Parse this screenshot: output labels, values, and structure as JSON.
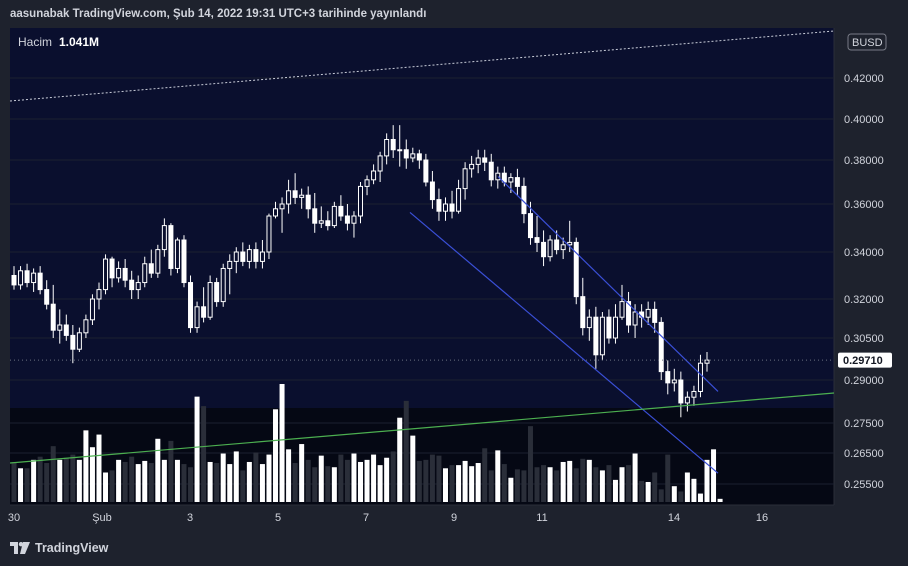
{
  "header": {
    "published_text": "aasunabak TradingView.com, Şub 14, 2022 19:31 UTC+3 tarihinde yayınlandı"
  },
  "footer": {
    "brand": "TradingView"
  },
  "chart_data": {
    "type": "candlestick",
    "currency_badge": "BUSD",
    "volume_label": "Hacim",
    "volume_value": "1.041M",
    "y_tick_labels": [
      "0.42000",
      "0.40000",
      "0.38000",
      "0.36000",
      "0.34000",
      "0.32000",
      "0.30500",
      "0.29000",
      "0.27500",
      "0.26500",
      "0.25500"
    ],
    "y_tick_values": [
      0.42,
      0.4,
      0.38,
      0.36,
      0.34,
      0.32,
      0.305,
      0.29,
      0.275,
      0.265,
      0.255
    ],
    "x_tick_labels": [
      "30",
      "Şub",
      "3",
      "5",
      "7",
      "9",
      "11",
      "14",
      "16"
    ],
    "x_tick_dates": [
      "2022-01-30",
      "2022-02-01",
      "2022-02-03",
      "2022-02-05",
      "2022-02-07",
      "2022-02-09",
      "2022-02-11",
      "2022-02-14",
      "2022-02-16"
    ],
    "last_price_label": "0.29710",
    "last_price": 0.2971,
    "candles": [
      {
        "o": 0.33,
        "h": 0.334,
        "l": 0.324,
        "c": 0.326
      },
      {
        "o": 0.326,
        "h": 0.334,
        "l": 0.324,
        "c": 0.332
      },
      {
        "o": 0.332,
        "h": 0.335,
        "l": 0.325,
        "c": 0.327
      },
      {
        "o": 0.327,
        "h": 0.333,
        "l": 0.323,
        "c": 0.331
      },
      {
        "o": 0.331,
        "h": 0.334,
        "l": 0.322,
        "c": 0.324
      },
      {
        "o": 0.324,
        "h": 0.328,
        "l": 0.316,
        "c": 0.318
      },
      {
        "o": 0.318,
        "h": 0.326,
        "l": 0.305,
        "c": 0.308
      },
      {
        "o": 0.308,
        "h": 0.316,
        "l": 0.303,
        "c": 0.31
      },
      {
        "o": 0.31,
        "h": 0.314,
        "l": 0.304,
        "c": 0.306
      },
      {
        "o": 0.306,
        "h": 0.31,
        "l": 0.296,
        "c": 0.301
      },
      {
        "o": 0.301,
        "h": 0.309,
        "l": 0.3,
        "c": 0.307
      },
      {
        "o": 0.307,
        "h": 0.314,
        "l": 0.305,
        "c": 0.312
      },
      {
        "o": 0.312,
        "h": 0.322,
        "l": 0.31,
        "c": 0.32
      },
      {
        "o": 0.32,
        "h": 0.327,
        "l": 0.316,
        "c": 0.324
      },
      {
        "o": 0.324,
        "h": 0.339,
        "l": 0.322,
        "c": 0.337
      },
      {
        "o": 0.337,
        "h": 0.338,
        "l": 0.325,
        "c": 0.329
      },
      {
        "o": 0.329,
        "h": 0.336,
        "l": 0.327,
        "c": 0.333
      },
      {
        "o": 0.333,
        "h": 0.337,
        "l": 0.325,
        "c": 0.328
      },
      {
        "o": 0.328,
        "h": 0.332,
        "l": 0.32,
        "c": 0.324
      },
      {
        "o": 0.324,
        "h": 0.33,
        "l": 0.32,
        "c": 0.327
      },
      {
        "o": 0.327,
        "h": 0.338,
        "l": 0.325,
        "c": 0.335
      },
      {
        "o": 0.335,
        "h": 0.341,
        "l": 0.329,
        "c": 0.331
      },
      {
        "o": 0.331,
        "h": 0.343,
        "l": 0.329,
        "c": 0.341
      },
      {
        "o": 0.341,
        "h": 0.354,
        "l": 0.338,
        "c": 0.351
      },
      {
        "o": 0.351,
        "h": 0.352,
        "l": 0.33,
        "c": 0.333
      },
      {
        "o": 0.333,
        "h": 0.346,
        "l": 0.331,
        "c": 0.345
      },
      {
        "o": 0.345,
        "h": 0.347,
        "l": 0.325,
        "c": 0.327
      },
      {
        "o": 0.327,
        "h": 0.33,
        "l": 0.307,
        "c": 0.309
      },
      {
        "o": 0.309,
        "h": 0.319,
        "l": 0.307,
        "c": 0.317
      },
      {
        "o": 0.317,
        "h": 0.325,
        "l": 0.311,
        "c": 0.313
      },
      {
        "o": 0.313,
        "h": 0.33,
        "l": 0.312,
        "c": 0.327
      },
      {
        "o": 0.327,
        "h": 0.329,
        "l": 0.317,
        "c": 0.319
      },
      {
        "o": 0.319,
        "h": 0.335,
        "l": 0.317,
        "c": 0.333
      },
      {
        "o": 0.333,
        "h": 0.339,
        "l": 0.322,
        "c": 0.336
      },
      {
        "o": 0.336,
        "h": 0.342,
        "l": 0.331,
        "c": 0.34
      },
      {
        "o": 0.34,
        "h": 0.344,
        "l": 0.334,
        "c": 0.336
      },
      {
        "o": 0.336,
        "h": 0.343,
        "l": 0.333,
        "c": 0.341
      },
      {
        "o": 0.341,
        "h": 0.344,
        "l": 0.333,
        "c": 0.336
      },
      {
        "o": 0.336,
        "h": 0.345,
        "l": 0.333,
        "c": 0.34
      },
      {
        "o": 0.34,
        "h": 0.356,
        "l": 0.337,
        "c": 0.355
      },
      {
        "o": 0.355,
        "h": 0.361,
        "l": 0.354,
        "c": 0.358
      },
      {
        "o": 0.358,
        "h": 0.363,
        "l": 0.348,
        "c": 0.36
      },
      {
        "o": 0.36,
        "h": 0.371,
        "l": 0.356,
        "c": 0.366
      },
      {
        "o": 0.366,
        "h": 0.374,
        "l": 0.36,
        "c": 0.363
      },
      {
        "o": 0.363,
        "h": 0.367,
        "l": 0.358,
        "c": 0.364
      },
      {
        "o": 0.364,
        "h": 0.368,
        "l": 0.354,
        "c": 0.358
      },
      {
        "o": 0.358,
        "h": 0.365,
        "l": 0.348,
        "c": 0.352
      },
      {
        "o": 0.352,
        "h": 0.359,
        "l": 0.35,
        "c": 0.353
      },
      {
        "o": 0.353,
        "h": 0.357,
        "l": 0.349,
        "c": 0.351
      },
      {
        "o": 0.351,
        "h": 0.361,
        "l": 0.35,
        "c": 0.359
      },
      {
        "o": 0.359,
        "h": 0.364,
        "l": 0.353,
        "c": 0.355
      },
      {
        "o": 0.355,
        "h": 0.36,
        "l": 0.349,
        "c": 0.352
      },
      {
        "o": 0.352,
        "h": 0.357,
        "l": 0.346,
        "c": 0.355
      },
      {
        "o": 0.355,
        "h": 0.37,
        "l": 0.352,
        "c": 0.368
      },
      {
        "o": 0.368,
        "h": 0.373,
        "l": 0.364,
        "c": 0.371
      },
      {
        "o": 0.371,
        "h": 0.378,
        "l": 0.369,
        "c": 0.375
      },
      {
        "o": 0.375,
        "h": 0.384,
        "l": 0.37,
        "c": 0.382
      },
      {
        "o": 0.382,
        "h": 0.393,
        "l": 0.378,
        "c": 0.39
      },
      {
        "o": 0.39,
        "h": 0.397,
        "l": 0.381,
        "c": 0.385
      },
      {
        "o": 0.385,
        "h": 0.397,
        "l": 0.377,
        "c": 0.385
      },
      {
        "o": 0.385,
        "h": 0.39,
        "l": 0.376,
        "c": 0.381
      },
      {
        "o": 0.381,
        "h": 0.386,
        "l": 0.379,
        "c": 0.383
      },
      {
        "o": 0.383,
        "h": 0.385,
        "l": 0.376,
        "c": 0.38
      },
      {
        "o": 0.38,
        "h": 0.383,
        "l": 0.368,
        "c": 0.37
      },
      {
        "o": 0.37,
        "h": 0.375,
        "l": 0.358,
        "c": 0.362
      },
      {
        "o": 0.362,
        "h": 0.367,
        "l": 0.353,
        "c": 0.357
      },
      {
        "o": 0.357,
        "h": 0.363,
        "l": 0.353,
        "c": 0.36
      },
      {
        "o": 0.36,
        "h": 0.366,
        "l": 0.354,
        "c": 0.357
      },
      {
        "o": 0.357,
        "h": 0.371,
        "l": 0.356,
        "c": 0.367
      },
      {
        "o": 0.367,
        "h": 0.379,
        "l": 0.362,
        "c": 0.376
      },
      {
        "o": 0.376,
        "h": 0.382,
        "l": 0.372,
        "c": 0.378
      },
      {
        "o": 0.378,
        "h": 0.385,
        "l": 0.374,
        "c": 0.381
      },
      {
        "o": 0.381,
        "h": 0.385,
        "l": 0.375,
        "c": 0.379
      },
      {
        "o": 0.379,
        "h": 0.383,
        "l": 0.368,
        "c": 0.371
      },
      {
        "o": 0.371,
        "h": 0.377,
        "l": 0.367,
        "c": 0.374
      },
      {
        "o": 0.374,
        "h": 0.377,
        "l": 0.368,
        "c": 0.37
      },
      {
        "o": 0.37,
        "h": 0.374,
        "l": 0.365,
        "c": 0.372
      },
      {
        "o": 0.372,
        "h": 0.376,
        "l": 0.364,
        "c": 0.368
      },
      {
        "o": 0.368,
        "h": 0.372,
        "l": 0.352,
        "c": 0.356
      },
      {
        "o": 0.356,
        "h": 0.361,
        "l": 0.343,
        "c": 0.346
      },
      {
        "o": 0.346,
        "h": 0.355,
        "l": 0.34,
        "c": 0.344
      },
      {
        "o": 0.344,
        "h": 0.349,
        "l": 0.334,
        "c": 0.338
      },
      {
        "o": 0.338,
        "h": 0.347,
        "l": 0.336,
        "c": 0.345
      },
      {
        "o": 0.345,
        "h": 0.349,
        "l": 0.339,
        "c": 0.341
      },
      {
        "o": 0.341,
        "h": 0.346,
        "l": 0.337,
        "c": 0.343
      },
      {
        "o": 0.343,
        "h": 0.353,
        "l": 0.34,
        "c": 0.344
      },
      {
        "o": 0.344,
        "h": 0.346,
        "l": 0.318,
        "c": 0.321
      },
      {
        "o": 0.321,
        "h": 0.329,
        "l": 0.306,
        "c": 0.309
      },
      {
        "o": 0.309,
        "h": 0.316,
        "l": 0.304,
        "c": 0.313
      },
      {
        "o": 0.313,
        "h": 0.317,
        "l": 0.294,
        "c": 0.299
      },
      {
        "o": 0.299,
        "h": 0.315,
        "l": 0.297,
        "c": 0.313
      },
      {
        "o": 0.313,
        "h": 0.316,
        "l": 0.303,
        "c": 0.305
      },
      {
        "o": 0.305,
        "h": 0.318,
        "l": 0.303,
        "c": 0.313
      },
      {
        "o": 0.313,
        "h": 0.326,
        "l": 0.312,
        "c": 0.319
      },
      {
        "o": 0.319,
        "h": 0.323,
        "l": 0.307,
        "c": 0.31
      },
      {
        "o": 0.31,
        "h": 0.318,
        "l": 0.305,
        "c": 0.315
      },
      {
        "o": 0.315,
        "h": 0.318,
        "l": 0.309,
        "c": 0.313
      },
      {
        "o": 0.313,
        "h": 0.319,
        "l": 0.31,
        "c": 0.316
      },
      {
        "o": 0.316,
        "h": 0.319,
        "l": 0.307,
        "c": 0.311
      },
      {
        "o": 0.311,
        "h": 0.313,
        "l": 0.29,
        "c": 0.293
      },
      {
        "o": 0.293,
        "h": 0.297,
        "l": 0.285,
        "c": 0.289
      },
      {
        "o": 0.289,
        "h": 0.294,
        "l": 0.286,
        "c": 0.29
      },
      {
        "o": 0.29,
        "h": 0.293,
        "l": 0.277,
        "c": 0.282
      },
      {
        "o": 0.282,
        "h": 0.286,
        "l": 0.279,
        "c": 0.284
      },
      {
        "o": 0.284,
        "h": 0.288,
        "l": 0.281,
        "c": 0.286
      },
      {
        "o": 0.286,
        "h": 0.299,
        "l": 0.284,
        "c": 0.296
      },
      {
        "o": 0.296,
        "h": 0.3,
        "l": 0.293,
        "c": 0.2971
      }
    ],
    "volume": [
      38,
      32,
      32,
      40,
      43,
      37,
      53,
      40,
      42,
      45,
      40,
      68,
      52,
      64,
      28,
      30,
      40,
      38,
      43,
      36,
      39,
      37,
      60,
      40,
      58,
      40,
      36,
      33,
      100,
      91,
      38,
      37,
      46,
      36,
      48,
      30,
      38,
      47,
      36,
      45,
      88,
      112,
      50,
      37,
      55,
      40,
      33,
      44,
      34,
      33,
      45,
      40,
      46,
      38,
      40,
      45,
      35,
      42,
      48,
      80,
      96,
      63,
      39,
      40,
      45,
      44,
      32,
      35,
      35,
      39,
      34,
      37,
      51,
      30,
      49,
      36,
      23,
      31,
      30,
      72,
      33,
      35,
      33,
      30,
      38,
      39,
      32,
      41,
      40,
      33,
      30,
      35,
      21,
      33,
      35,
      46,
      20,
      19,
      28,
      12,
      45,
      15,
      10,
      28,
      22,
      8,
      40,
      50,
      3
    ],
    "trendlines": [
      {
        "style": "blue-channel-lower",
        "from": {
          "x": "2022-02-08",
          "y": 0.3565
        },
        "to": {
          "x": "2022-02-15",
          "y": 0.2585
        }
      },
      {
        "style": "blue-channel-upper",
        "from": {
          "x": "2022-02-10",
          "y": 0.3725
        },
        "to": {
          "x": "2022-02-15",
          "y": 0.286
        }
      },
      {
        "style": "green-support"
      },
      {
        "style": "white-dotted"
      }
    ],
    "colors": {
      "background": "#1e222d",
      "price_pane": "#0a0f2e",
      "volume_pane": "#050814",
      "candle": "#ffffff",
      "volume_up": "#ffffff",
      "volume_down": "#2a2e39",
      "channel": "#3a4fd6",
      "support": "#4caf50",
      "axis_text": "#d1d4dc"
    }
  }
}
